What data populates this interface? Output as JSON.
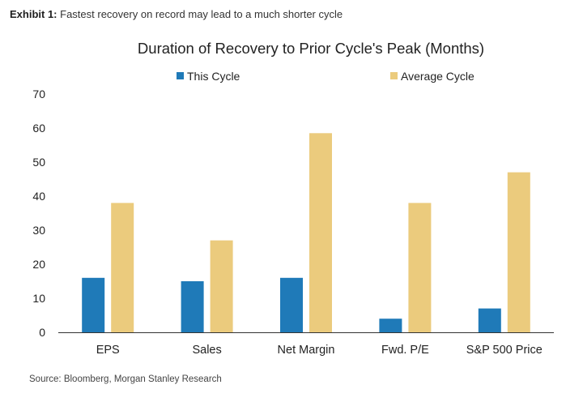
{
  "header": {
    "exhibit_label": "Exhibit 1:",
    "exhibit_caption": "Fastest recovery on record may lead to a much shorter cycle"
  },
  "footer": {
    "source": "Source: Bloomberg, Morgan Stanley Research"
  },
  "colors": {
    "this_cycle": "#1f7ab8",
    "average_cycle": "#ebcb7d",
    "axis": "#333333"
  },
  "chart_data": {
    "type": "bar",
    "title": "Duration of Recovery to Prior Cycle's Peak (Months)",
    "categories": [
      "EPS",
      "Sales",
      "Net Margin",
      "Fwd. P/E",
      "S&P 500 Price"
    ],
    "series": [
      {
        "name": "This Cycle",
        "values": [
          16,
          15,
          16,
          4,
          7
        ]
      },
      {
        "name": "Average Cycle",
        "values": [
          38,
          27,
          58.5,
          38,
          47
        ]
      }
    ],
    "ylim": [
      0,
      70
    ],
    "yticks": [
      "0",
      "10",
      "20",
      "30",
      "40",
      "50",
      "60",
      "70"
    ],
    "grid": false,
    "legend_position": "top"
  }
}
